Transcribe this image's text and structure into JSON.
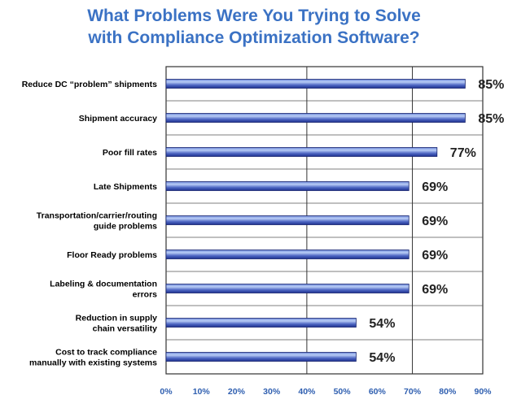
{
  "title": {
    "line1": "What Problems Were You Trying to Solve",
    "line2": "with Compliance Optimization Software?"
  },
  "colors": {
    "title": "#3b72c4",
    "bar_light": "#9fb8ef",
    "bar_dark": "#1d2f8f",
    "tick_labels": "#2f5fb0"
  },
  "chart_data": {
    "type": "bar",
    "orientation": "horizontal",
    "title": "What Problems Were You Trying to Solve with Compliance Optimization Software?",
    "categories": [
      [
        "Reduce DC “problem” shipments"
      ],
      [
        "Shipment accuracy"
      ],
      [
        "Poor fill rates"
      ],
      [
        "Late Shipments"
      ],
      [
        "Transportation/carrier/routing",
        "guide problems"
      ],
      [
        "Floor Ready problems"
      ],
      [
        "Labeling & documentation",
        "errors"
      ],
      [
        "Reduction in supply",
        "chain versatility"
      ],
      [
        "Cost to track compliance",
        "manually with existing systems"
      ]
    ],
    "values": [
      85,
      85,
      77,
      69,
      69,
      69,
      69,
      54,
      54
    ],
    "data_labels": [
      "85%",
      "85%",
      "77%",
      "69%",
      "69%",
      "69%",
      "69%",
      "54%",
      "54%"
    ],
    "xlim": [
      0,
      90
    ],
    "xticks": [
      0,
      10,
      20,
      30,
      40,
      50,
      60,
      70,
      80,
      90
    ],
    "xtick_labels": [
      "0%",
      "10%",
      "20%",
      "30%",
      "40%",
      "50%",
      "60%",
      "70%",
      "80%",
      "90%"
    ],
    "grid": "horizontal row dividers, vertical lines at 40% and 70%",
    "legend": "none"
  }
}
